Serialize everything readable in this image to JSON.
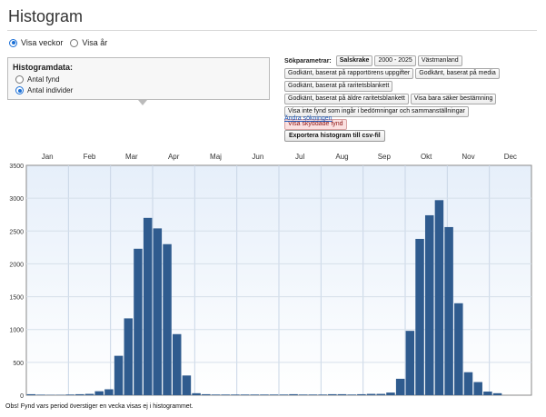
{
  "page": {
    "title": "Histogram"
  },
  "period": {
    "options": [
      {
        "label": "Visa veckor",
        "checked": true
      },
      {
        "label": "Visa år",
        "checked": false
      }
    ]
  },
  "histogram_data": {
    "title": "Histogramdata:",
    "options": [
      {
        "label": "Antal fynd",
        "checked": false
      },
      {
        "label": "Antal individer",
        "checked": true
      }
    ]
  },
  "search_params": {
    "label": "Sökparametrar:",
    "rows": [
      [
        {
          "text": "Salskrake",
          "style": "bold"
        },
        {
          "text": "2000 - 2025",
          "style": ""
        },
        {
          "text": "Västmanland",
          "style": ""
        }
      ],
      [
        {
          "text": "Godkänt, baserat på rapportörens uppgifter",
          "style": ""
        },
        {
          "text": "Godkänt, baserat på media",
          "style": ""
        }
      ],
      [
        {
          "text": "Godkänt, baserat på raritetsblankett",
          "style": ""
        }
      ],
      [
        {
          "text": "Godkänt, baserat på äldre raritetsblankett",
          "style": ""
        },
        {
          "text": "Visa bara säker bestämning",
          "style": ""
        }
      ],
      [
        {
          "text": "Visa inte fynd som ingår i bedömningar och sammanställningar",
          "style": ""
        }
      ],
      [
        {
          "text": "Visa skyddade fynd",
          "style": "red"
        }
      ]
    ],
    "change_link": "Ändra sökningen",
    "export_button": "Exportera histogram till csv-fil"
  },
  "chart_data": {
    "type": "bar",
    "months": [
      "Jan",
      "Feb",
      "Mar",
      "Apr",
      "Maj",
      "Jun",
      "Jul",
      "Aug",
      "Sep",
      "Okt",
      "Nov",
      "Dec"
    ],
    "x_label_unit": "week",
    "x": [
      1,
      2,
      3,
      4,
      5,
      6,
      7,
      8,
      9,
      10,
      11,
      12,
      13,
      14,
      15,
      16,
      17,
      18,
      19,
      20,
      21,
      22,
      23,
      24,
      25,
      26,
      27,
      28,
      29,
      30,
      31,
      32,
      33,
      34,
      35,
      36,
      37,
      38,
      39,
      40,
      41,
      42,
      43,
      44,
      45,
      46,
      47,
      48,
      49,
      50,
      51,
      52
    ],
    "values": [
      15,
      8,
      5,
      5,
      10,
      15,
      20,
      60,
      90,
      600,
      1170,
      2230,
      2700,
      2540,
      2300,
      930,
      300,
      30,
      15,
      10,
      10,
      10,
      10,
      10,
      10,
      10,
      10,
      15,
      10,
      10,
      10,
      15,
      15,
      10,
      15,
      20,
      20,
      40,
      250,
      980,
      2380,
      2740,
      2970,
      2560,
      1400,
      350,
      200,
      55,
      30,
      0,
      0,
      0
    ],
    "yticks": [
      0,
      500,
      1000,
      1500,
      2000,
      2500,
      3000,
      3500
    ],
    "ylim": [
      0,
      3500
    ],
    "bar_color": "#2f5b8e",
    "grid": true
  },
  "footnote": "Obs! Fynd vars period överstiger en vecka visas ej i histogrammet."
}
